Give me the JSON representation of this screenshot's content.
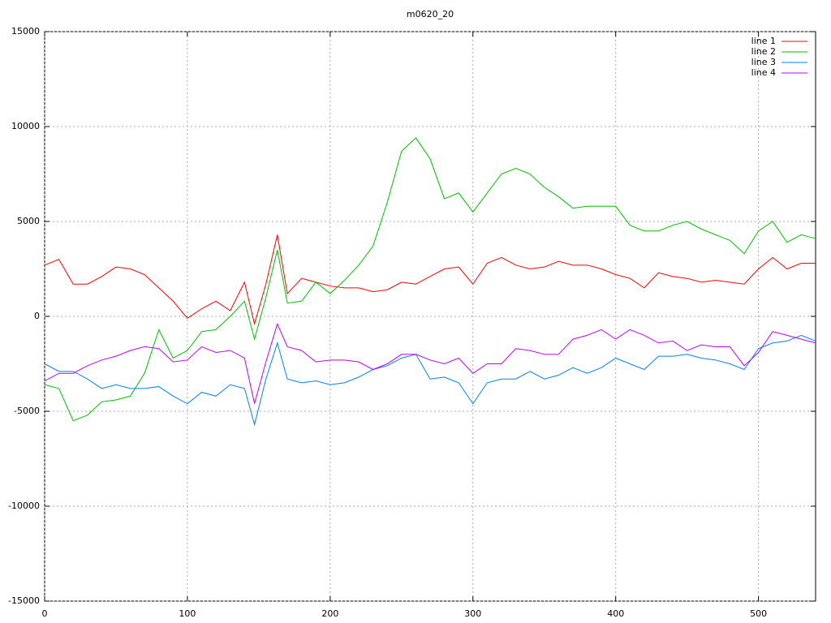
{
  "chart_data": {
    "type": "line",
    "title": "m0620_20",
    "x": [
      0,
      10,
      20,
      30,
      40,
      50,
      60,
      70,
      80,
      90,
      100,
      110,
      120,
      130,
      140,
      147,
      155,
      163,
      170,
      180,
      190,
      200,
      210,
      220,
      230,
      240,
      250,
      260,
      270,
      280,
      290,
      300,
      310,
      320,
      330,
      340,
      350,
      360,
      370,
      380,
      390,
      400,
      410,
      420,
      430,
      440,
      450,
      460,
      470,
      480,
      490,
      500,
      510,
      520,
      530,
      540
    ],
    "series": [
      {
        "name": "line 1",
        "color": "#ff0000",
        "values": [
          2700,
          3000,
          1700,
          1700,
          2100,
          2600,
          2500,
          2200,
          1500,
          800,
          -100,
          400,
          800,
          300,
          1800,
          -400,
          1700,
          4300,
          1200,
          2000,
          1800,
          1600,
          1500,
          1500,
          1300,
          1400,
          1800,
          1700,
          2100,
          2500,
          2600,
          1700,
          2800,
          3100,
          2700,
          2500,
          2600,
          2900,
          2700,
          2700,
          2500,
          2200,
          2000,
          1500,
          2300,
          2100,
          2000,
          1800,
          1900,
          1800,
          1700,
          2500,
          3100,
          2500,
          2800,
          2800
        ]
      },
      {
        "name": "line 2",
        "color": "#00c000",
        "values": [
          -3600,
          -3800,
          -5500,
          -5200,
          -4500,
          -4400,
          -4200,
          -3000,
          -700,
          -2200,
          -1800,
          -800,
          -700,
          0,
          800,
          -1200,
          1000,
          3500,
          700,
          800,
          1800,
          1200,
          1900,
          2700,
          3700,
          6000,
          8700,
          9400,
          8300,
          6200,
          6500,
          5500,
          6500,
          7500,
          7800,
          7500,
          6800,
          6300,
          5700,
          5800,
          5800,
          5800,
          4800,
          4500,
          4500,
          4800,
          5000,
          4600,
          4300,
          4000,
          3300,
          4500,
          5000,
          3900,
          4300,
          4100
        ]
      },
      {
        "name": "line 3",
        "color": "#0080ff",
        "values": [
          -2500,
          -2900,
          -2900,
          -3300,
          -3800,
          -3600,
          -3800,
          -3800,
          -3700,
          -4200,
          -4600,
          -4000,
          -4200,
          -3600,
          -3800,
          -5700,
          -3300,
          -1400,
          -3300,
          -3500,
          -3400,
          -3600,
          -3500,
          -3200,
          -2800,
          -2600,
          -2200,
          -2000,
          -3300,
          -3200,
          -3500,
          -4600,
          -3500,
          -3300,
          -3300,
          -2900,
          -3300,
          -3100,
          -2700,
          -3000,
          -2700,
          -2200,
          -2500,
          -2800,
          -2100,
          -2100,
          -2000,
          -2200,
          -2300,
          -2500,
          -2800,
          -1700,
          -1400,
          -1300,
          -1000,
          -1300
        ]
      },
      {
        "name": "line 4",
        "color": "#c000ff",
        "values": [
          -3400,
          -3000,
          -3000,
          -2600,
          -2300,
          -2100,
          -1800,
          -1600,
          -1700,
          -2400,
          -2300,
          -1600,
          -1900,
          -1800,
          -2200,
          -4600,
          -2400,
          -400,
          -1600,
          -1800,
          -2400,
          -2300,
          -2300,
          -2400,
          -2800,
          -2500,
          -2000,
          -2000,
          -2300,
          -2500,
          -2200,
          -3000,
          -2500,
          -2500,
          -1700,
          -1800,
          -2000,
          -2000,
          -1200,
          -1000,
          -700,
          -1200,
          -700,
          -1000,
          -1400,
          -1300,
          -1800,
          -1500,
          -1600,
          -1600,
          -2600,
          -1900,
          -800,
          -1000,
          -1200,
          -1400
        ]
      }
    ],
    "xlim": [
      0,
      540
    ],
    "xticks": [
      0,
      100,
      200,
      300,
      400,
      500
    ],
    "ylim": [
      -15000,
      15000
    ],
    "yticks": [
      -15000,
      -10000,
      -5000,
      0,
      5000,
      10000,
      15000
    ],
    "grid": true,
    "legend": "top-right"
  }
}
